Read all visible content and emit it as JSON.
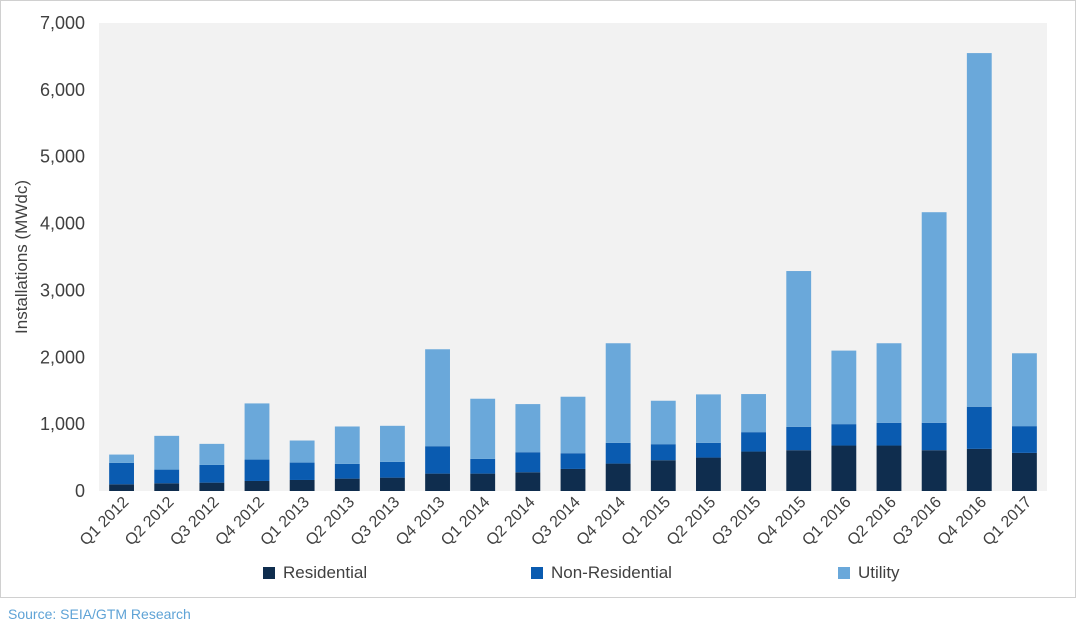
{
  "chart_data": {
    "type": "bar",
    "stacked": true,
    "categories": [
      "Q1 2012",
      "Q2 2012",
      "Q3 2012",
      "Q4 2012",
      "Q1 2013",
      "Q2 2013",
      "Q3 2013",
      "Q4 2013",
      "Q1 2014",
      "Q2 2014",
      "Q3 2014",
      "Q4 2014",
      "Q1 2015",
      "Q2 2015",
      "Q3 2015",
      "Q4 2015",
      "Q1 2016",
      "Q2 2016",
      "Q3 2016",
      "Q4 2016",
      "Q1 2017"
    ],
    "series": [
      {
        "name": "Residential",
        "color": "#0f2d4e",
        "values": [
          100,
          115,
          125,
          150,
          165,
          185,
          200,
          260,
          260,
          280,
          330,
          410,
          460,
          500,
          590,
          610,
          680,
          680,
          610,
          630,
          570
        ]
      },
      {
        "name": "Non-Residential",
        "color": "#0a5bb0",
        "values": [
          320,
          205,
          265,
          320,
          260,
          220,
          235,
          410,
          220,
          300,
          235,
          310,
          240,
          220,
          290,
          350,
          320,
          340,
          410,
          630,
          400
        ]
      },
      {
        "name": "Utility",
        "color": "#6aa8da",
        "values": [
          125,
          505,
          315,
          840,
          330,
          560,
          540,
          1450,
          900,
          720,
          845,
          1490,
          650,
          725,
          570,
          2330,
          1100,
          1190,
          3150,
          5290,
          1090
        ]
      }
    ],
    "ylabel": "Installations (MWdc)",
    "xlabel": "",
    "ylim": [
      0,
      7000
    ],
    "yticks": [
      0,
      1000,
      2000,
      3000,
      4000,
      5000,
      6000,
      7000
    ],
    "ytick_labels": [
      "0",
      "1,000",
      "2,000",
      "3,000",
      "4,000",
      "5,000",
      "6,000",
      "7,000"
    ],
    "plot_background": "#f2f2f2",
    "grid": false,
    "legend_position": "bottom"
  },
  "source": "Source: SEIA/GTM Research"
}
